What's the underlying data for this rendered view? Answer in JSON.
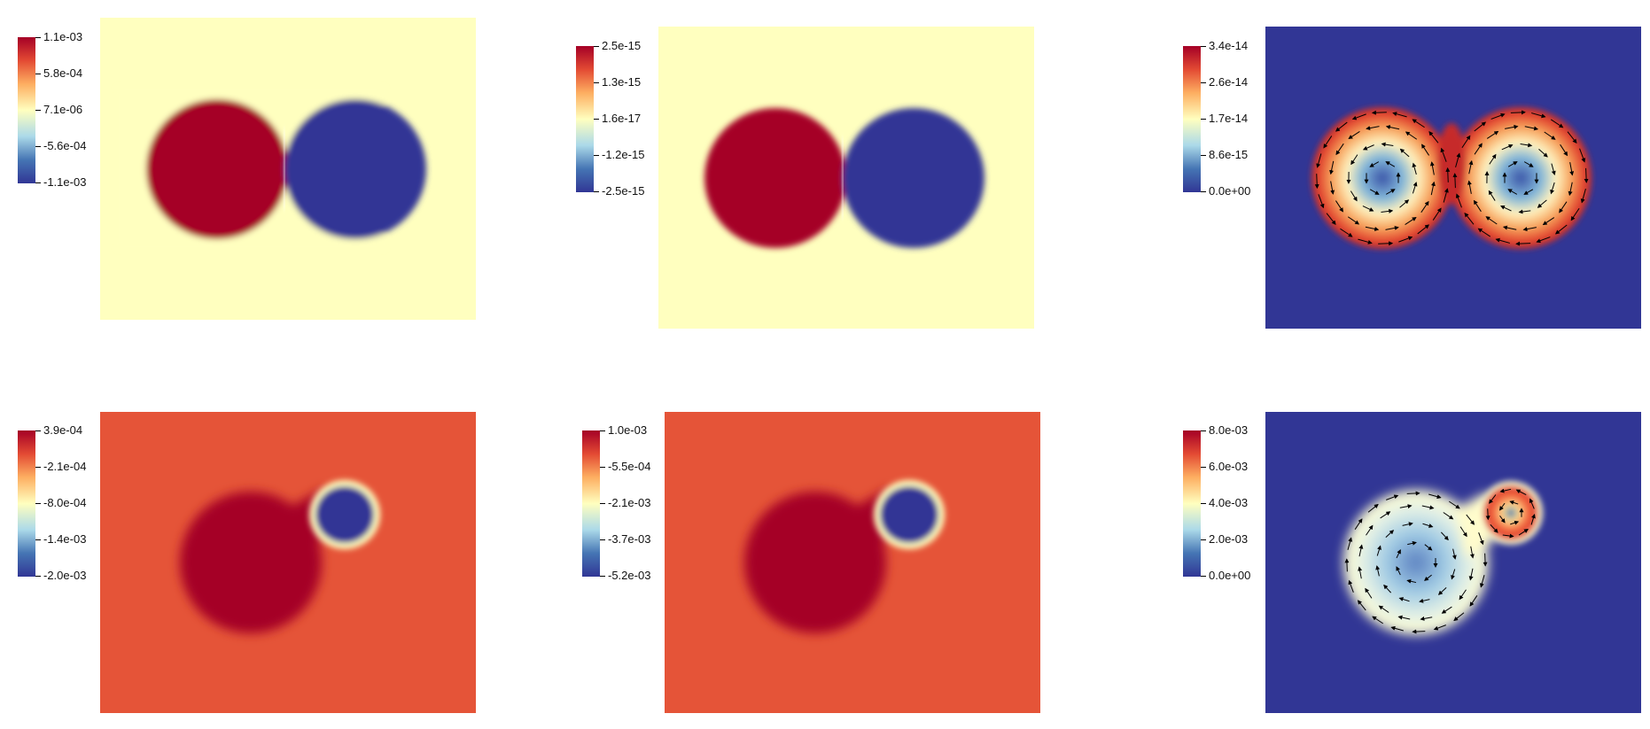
{
  "panels": [
    {
      "colorbar_labels": [
        "1.1e-03",
        "5.8e-04",
        "7.1e-06",
        "-5.6e-04",
        "-1.1e-03"
      ],
      "field": "two-drops-phase"
    },
    {
      "colorbar_labels": [
        "2.5e-15",
        "1.3e-15",
        "1.6e-17",
        "-1.2e-15",
        "-2.5e-15"
      ],
      "field": "two-drops-phase"
    },
    {
      "colorbar_labels": [
        "3.4e-14",
        "2.6e-14",
        "1.7e-14",
        "8.6e-15",
        "0.0e+00"
      ],
      "field": "two-drops-velocity"
    },
    {
      "colorbar_labels": [
        "3.9e-04",
        "-2.1e-04",
        "-8.0e-04",
        "-1.4e-03",
        "-2.0e-03"
      ],
      "field": "merging-drops-phase"
    },
    {
      "colorbar_labels": [
        "1.0e-03",
        "-5.5e-04",
        "-2.1e-03",
        "-3.7e-03",
        "-5.2e-03"
      ],
      "field": "merging-drops-phase"
    },
    {
      "colorbar_labels": [
        "8.0e-03",
        "6.0e-03",
        "4.0e-03",
        "2.0e-03",
        "0.0e+00"
      ],
      "field": "merging-drops-velocity"
    }
  ],
  "colors": {
    "deep_red": "#a50026",
    "deep_blue": "#313695",
    "pale_yellow": "#ffffbf",
    "orange_red": "#e55438"
  }
}
